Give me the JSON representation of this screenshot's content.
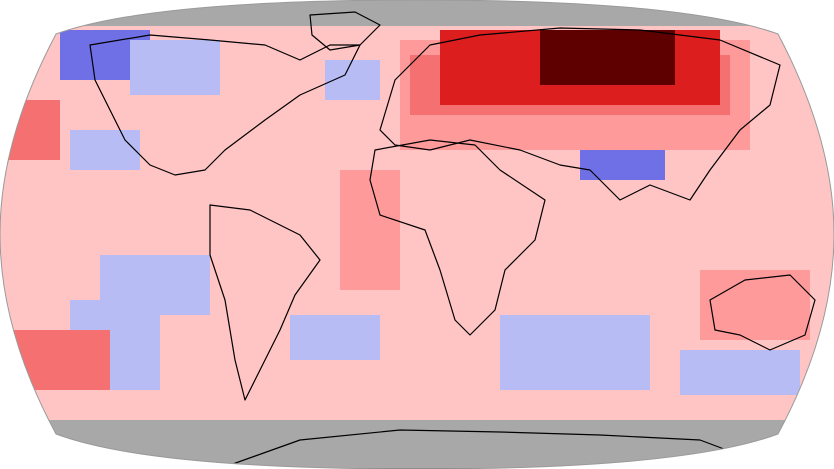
{
  "map": {
    "projection": "robinson",
    "missing_data_color": "#a8a8a8",
    "coastline_color": "#000000",
    "legend": "none",
    "anomaly_scale": {
      "cool_strong": "#7070e6",
      "cool_mild": "#b8bcf4",
      "neutral_warm": "#ffc4c4",
      "warm_mild": "#ff9a9a",
      "warm_moderate": "#f57070",
      "warm_strong": "#dd1e1e",
      "warm_extreme": "#5e0000"
    },
    "regions": [
      {
        "name": "warm-anomaly-background",
        "level": "neutral_warm"
      },
      {
        "name": "polar-missing-data-north",
        "level": "missing"
      },
      {
        "name": "polar-missing-data-south",
        "level": "missing"
      },
      {
        "name": "alaska-cool-anomaly",
        "level": "cool_strong"
      },
      {
        "name": "canada-cool-anomaly",
        "level": "cool_mild"
      },
      {
        "name": "north-pacific-cool-anomaly",
        "level": "cool_mild"
      },
      {
        "name": "north-atlantic-cool-anomaly",
        "level": "cool_mild"
      },
      {
        "name": "south-asia-cool-anomaly",
        "level": "cool_strong"
      },
      {
        "name": "south-pacific-cool-anomaly",
        "level": "cool_mild"
      },
      {
        "name": "south-atlantic-cool-anomaly",
        "level": "cool_mild"
      },
      {
        "name": "indian-ocean-cool-anomaly",
        "level": "cool_mild"
      },
      {
        "name": "siberia-warm-anomaly",
        "level": "warm_strong"
      },
      {
        "name": "siberia-extreme-warm-core",
        "level": "warm_extreme"
      },
      {
        "name": "north-pacific-warm-anomaly",
        "level": "warm_moderate"
      },
      {
        "name": "southeast-pacific-warm-anomaly",
        "level": "warm_moderate"
      },
      {
        "name": "tropical-atlantic-warm-anomaly",
        "level": "warm_mild"
      },
      {
        "name": "australia-warm-anomaly",
        "level": "warm_mild"
      }
    ]
  }
}
